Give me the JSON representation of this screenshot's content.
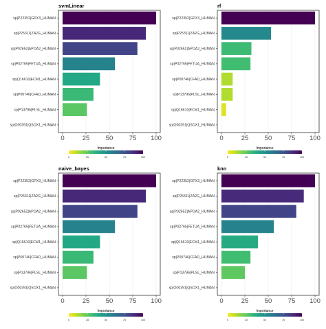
{
  "legend": {
    "title": "Importance",
    "ticks": [
      "0",
      "25",
      "50",
      "75",
      "100"
    ],
    "colormap": "viridis-reversed"
  },
  "chart_data": [
    {
      "type": "bar",
      "orientation": "horizontal",
      "title": "svmLinear",
      "xlim": [
        0,
        100
      ],
      "x_ticks": [
        "0",
        "25",
        "50",
        "75",
        "100"
      ],
      "grid": true,
      "categories": [
        "sp|P22352|GPX3_HUMAN",
        "sp|P25311|ZA2G_HUMAN",
        "sp|P02652|APOA2_HUMAN",
        "sp|P02765|FETUA_HUMAN",
        "sp|Q16610|ECM1_HUMAN",
        "sp|P00746|CFAD_HUMAN",
        "sp|P13796|PLSL_HUMAN",
        "sp|O00391|QSOX1_HUMAN"
      ],
      "values": [
        100,
        89,
        80,
        56,
        40,
        33,
        26,
        0
      ]
    },
    {
      "type": "bar",
      "orientation": "horizontal",
      "title": "rf",
      "xlim": [
        0,
        100
      ],
      "x_ticks": [
        "0",
        "25",
        "50",
        "75",
        "100"
      ],
      "grid": true,
      "categories": [
        "sp|P22352|GPX3_HUMAN",
        "sp|P25311|ZA2G_HUMAN",
        "sp|P02652|APOA2_HUMAN",
        "sp|P02765|FETUA_HUMAN",
        "sp|P00746|CFAD_HUMAN",
        "sp|P13796|PLSL_HUMAN",
        "sp|Q16610|ECM1_HUMAN",
        "sp|O00391|QSOX1_HUMAN"
      ],
      "values": [
        100,
        53,
        32,
        31,
        12,
        12,
        5,
        0
      ]
    },
    {
      "type": "bar",
      "orientation": "horizontal",
      "title": "naive_bayes",
      "xlim": [
        0,
        100
      ],
      "x_ticks": [
        "0",
        "25",
        "50",
        "75",
        "100"
      ],
      "grid": true,
      "categories": [
        "sp|P22352|GPX3_HUMAN",
        "sp|P25311|ZA2G_HUMAN",
        "sp|P02652|APOA2_HUMAN",
        "sp|P02765|FETUA_HUMAN",
        "sp|Q16610|ECM1_HUMAN",
        "sp|P00746|CFAD_HUMAN",
        "sp|P13796|PLSL_HUMAN",
        "sp|O00391|QSOX1_HUMAN"
      ],
      "values": [
        100,
        89,
        80,
        56,
        40,
        33,
        26,
        0
      ]
    },
    {
      "type": "bar",
      "orientation": "horizontal",
      "title": "knn",
      "xlim": [
        0,
        100
      ],
      "x_ticks": [
        "0",
        "25",
        "50",
        "75",
        "100"
      ],
      "grid": true,
      "categories": [
        "sp|P22352|GPX3_HUMAN",
        "sp|P25311|ZA2G_HUMAN",
        "sp|P02652|APOA2_HUMAN",
        "sp|P02765|FETUA_HUMAN",
        "sp|Q16610|ECM1_HUMAN",
        "sp|P00746|CFAD_HUMAN",
        "sp|P13796|PLSL_HUMAN",
        "sp|O00391|QSOX1_HUMAN"
      ],
      "values": [
        100,
        88,
        80,
        56,
        39,
        31,
        25,
        0
      ]
    }
  ]
}
